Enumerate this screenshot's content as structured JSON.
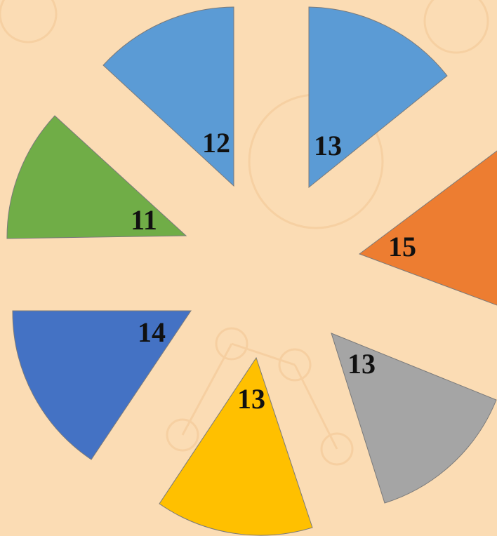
{
  "sectors": [
    {
      "label": "12"
    },
    {
      "label": "13"
    },
    {
      "label": "11"
    },
    {
      "label": "15"
    },
    {
      "label": "13"
    },
    {
      "label": "13"
    },
    {
      "label": "14"
    }
  ]
}
